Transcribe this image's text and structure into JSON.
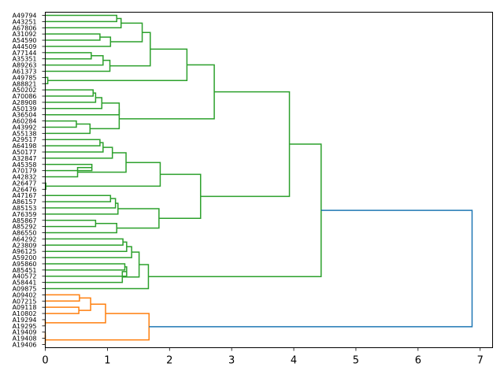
{
  "chart_data": {
    "type": "dendrogram",
    "orientation": "horizontal",
    "xlim": [
      0,
      7.2
    ],
    "x_ticks": [
      0,
      1,
      2,
      3,
      4,
      5,
      6,
      7
    ],
    "x_tick_labels": [
      "0",
      "1",
      "2",
      "3",
      "4",
      "5",
      "6",
      "7"
    ],
    "grid": false,
    "colors": {
      "cluster_green": "#2ca02c",
      "cluster_orange": "#ff7f0e",
      "above_threshold": "#1f77b4"
    },
    "leaves": [
      "A49794",
      "A43251",
      "A67806",
      "A31092",
      "A54590",
      "A44509",
      "A77144",
      "A35351",
      "A89263",
      "A61373",
      "A49785",
      "A88821",
      "A50202",
      "A70086",
      "A28908",
      "A50139",
      "A36504",
      "A60284",
      "A43992",
      "A55138",
      "A29517",
      "A64198",
      "A50177",
      "A32847",
      "A45358",
      "A70179",
      "A42832",
      "A26477",
      "A26476",
      "A47167",
      "A86157",
      "A85153",
      "A76359",
      "A85867",
      "A85292",
      "A86550",
      "A64292",
      "A23809",
      "A96125",
      "A59200",
      "A95860",
      "A85451",
      "A40572",
      "A58441",
      "A09875",
      "A09402",
      "A07215",
      "A09118",
      "A10802",
      "A19294",
      "A19295",
      "A19409",
      "A19408",
      "A19406"
    ],
    "merges": [
      {
        "left": "A49794",
        "right": "A43251",
        "height": 1.15,
        "color": "green"
      },
      {
        "left": "c0",
        "right": "A67806",
        "height": 1.22,
        "color": "green"
      },
      {
        "left": "A31092",
        "right": "A54590",
        "height": 0.88,
        "color": "green"
      },
      {
        "left": "c2",
        "right": "A44509",
        "height": 1.05,
        "color": "green"
      },
      {
        "left": "c1",
        "right": "c3",
        "height": 1.56,
        "color": "green"
      },
      {
        "left": "A77144",
        "right": "A35351",
        "height": 0.74,
        "color": "green"
      },
      {
        "left": "c5",
        "right": "A89263",
        "height": 0.93,
        "color": "green"
      },
      {
        "left": "c6",
        "right": "A61373",
        "height": 1.04,
        "color": "green"
      },
      {
        "left": "c4",
        "right": "c7",
        "height": 1.69,
        "color": "green"
      },
      {
        "left": "A49785",
        "right": "A88821",
        "height": 0.04,
        "color": "green"
      },
      {
        "left": "c8",
        "right": "c9",
        "height": 2.28,
        "color": "green"
      },
      {
        "left": "A50202",
        "right": "A70086",
        "height": 0.77,
        "color": "green"
      },
      {
        "left": "c11",
        "right": "A28908",
        "height": 0.81,
        "color": "green"
      },
      {
        "left": "c12",
        "right": "A50139",
        "height": 0.91,
        "color": "green"
      },
      {
        "left": "c13",
        "right": "A36504",
        "height": 1.19,
        "color": "green"
      },
      {
        "left": "A60284",
        "right": "A43992",
        "height": 0.5,
        "color": "green"
      },
      {
        "left": "c15",
        "right": "A55138",
        "height": 0.72,
        "color": "green"
      },
      {
        "left": "c14",
        "right": "c16",
        "height": 1.19,
        "color": "green"
      },
      {
        "left": "c10",
        "right": "c17",
        "height": 2.72,
        "color": "green"
      },
      {
        "left": "A29517",
        "right": "A64198",
        "height": 0.88,
        "color": "green"
      },
      {
        "left": "c19",
        "right": "A50177",
        "height": 0.93,
        "color": "green"
      },
      {
        "left": "c20",
        "right": "A32847",
        "height": 1.08,
        "color": "green"
      },
      {
        "left": "A45358",
        "right": "A70179",
        "height": 0.75,
        "color": "green"
      },
      {
        "left": "c22",
        "right": "A42832",
        "height": 0.52,
        "color": "green"
      },
      {
        "left": "c21",
        "right": "c23",
        "height": 1.3,
        "color": "green"
      },
      {
        "left": "A26477",
        "right": "A26476",
        "height": 0.01,
        "color": "green"
      },
      {
        "left": "c24",
        "right": "c25",
        "height": 1.85,
        "color": "green"
      },
      {
        "left": "A47167",
        "right": "A86157",
        "height": 1.05,
        "color": "green"
      },
      {
        "left": "c27",
        "right": "A85153",
        "height": 1.13,
        "color": "green"
      },
      {
        "left": "c28",
        "right": "A76359",
        "height": 1.17,
        "color": "green"
      },
      {
        "left": "A85867",
        "right": "A85292",
        "height": 0.81,
        "color": "green"
      },
      {
        "left": "c30",
        "right": "A86550",
        "height": 1.15,
        "color": "green"
      },
      {
        "left": "c29",
        "right": "c31",
        "height": 1.83,
        "color": "green"
      },
      {
        "left": "c26",
        "right": "c32",
        "height": 2.5,
        "color": "green"
      },
      {
        "left": "c18",
        "right": "c33",
        "height": 3.93,
        "color": "green"
      },
      {
        "left": "A64292",
        "right": "A23809",
        "height": 1.25,
        "color": "green"
      },
      {
        "left": "c35",
        "right": "A96125",
        "height": 1.31,
        "color": "green"
      },
      {
        "left": "c36",
        "right": "A59200",
        "height": 1.39,
        "color": "green"
      },
      {
        "left": "A95860",
        "right": "A85451",
        "height": 1.28,
        "color": "green"
      },
      {
        "left": "c38",
        "right": "A40572",
        "height": 1.31,
        "color": "green"
      },
      {
        "left": "c39",
        "right": "A58441",
        "height": 1.24,
        "color": "green"
      },
      {
        "left": "c37",
        "right": "c40",
        "height": 1.51,
        "color": "green"
      },
      {
        "left": "c41",
        "right": "A09875",
        "height": 1.66,
        "color": "green"
      },
      {
        "left": "c34",
        "right": "c42",
        "height": 4.44,
        "color": "green"
      },
      {
        "left": "A09402",
        "right": "A07215",
        "height": 0.55,
        "color": "orange"
      },
      {
        "left": "A09118",
        "right": "A10802",
        "height": 0.54,
        "color": "orange"
      },
      {
        "left": "c44",
        "right": "c45",
        "height": 0.73,
        "color": "orange"
      },
      {
        "left": "A19294",
        "right": "A19295",
        "height": 0.0,
        "color": "orange"
      },
      {
        "left": "c46",
        "right": "c47",
        "height": 0.97,
        "color": "orange"
      },
      {
        "left": "A19409",
        "right": "A19408",
        "height": 0.0,
        "color": "orange"
      },
      {
        "left": "c49",
        "right": "A19406",
        "height": 0.0,
        "color": "orange"
      },
      {
        "left": "c48",
        "right": "c50",
        "height": 1.67,
        "color": "orange"
      },
      {
        "left": "c43",
        "right": "c51",
        "height": 6.87,
        "color": "above_threshold"
      }
    ]
  }
}
